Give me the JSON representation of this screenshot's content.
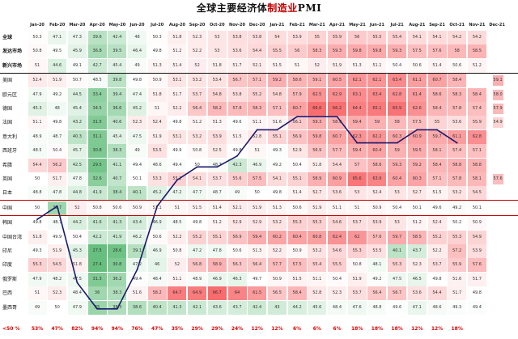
{
  "title": {
    "prefix": "全球主要经济体",
    "highlight": "制造业",
    "suffix": "PMI"
  },
  "colors": {
    "accent_red": "#c00000",
    "percent_red": "#e00000",
    "line_navy": "#1a1a6e",
    "high_red": "#f8696b",
    "low_green": "#63be7b",
    "mid": "#ffffff"
  },
  "months": [
    "Jan-20",
    "Feb-20",
    "Mar-20",
    "Apr-20",
    "May-20",
    "Jun-20",
    "Jul-20",
    "Aug-20",
    "Sep-20",
    "Oct-20",
    "Nov-20",
    "Dec-20",
    "Jan-21",
    "Feb-21",
    "Mar-21",
    "Apr-21",
    "May-21",
    "Jun-21",
    "Jul-21",
    "Aug-21",
    "Sep-21",
    "Oct-21",
    "Nov-21",
    "Dec-21"
  ],
  "rows": [
    {
      "label": "全球",
      "bold": true,
      "values": [
        50.3,
        47.1,
        47.3,
        39.6,
        42.4,
        48.0,
        50.3,
        51.8,
        52.3,
        53.0,
        53.8,
        53.8,
        54.0,
        53.9,
        55.0,
        55.9,
        56.0,
        55.5,
        55.4,
        54.1,
        54.1,
        54.2,
        54.2,
        null
      ]
    },
    {
      "label": "发达市场",
      "bold": true,
      "values": [
        50.8,
        49.5,
        45.9,
        36.8,
        39.5,
        46.4,
        49.8,
        51.2,
        52.2,
        53.0,
        53.6,
        54.4,
        55.5,
        56.0,
        58.3,
        59.3,
        59.8,
        59.8,
        59.3,
        57.5,
        57.6,
        58.0,
        58.5,
        null
      ]
    },
    {
      "label": "新兴市场",
      "bold": true,
      "values": [
        51.0,
        44.6,
        49.1,
        42.7,
        45.4,
        49.0,
        51.3,
        51.4,
        52.0,
        51.8,
        51.7,
        52.1,
        51.5,
        51.0,
        52.0,
        51.9,
        51.3,
        51.1,
        50.4,
        50.6,
        51.4,
        50.6,
        51.2,
        null
      ]
    },
    {
      "label": "美国",
      "bold": false,
      "values": [
        52.4,
        51.9,
        50.7,
        48.5,
        39.8,
        49.8,
        50.9,
        53.1,
        53.2,
        53.4,
        56.7,
        57.1,
        59.2,
        58.6,
        59.1,
        60.5,
        62.1,
        62.1,
        63.4,
        61.1,
        60.7,
        58.4,
        null,
        null
      ]
    },
    {
      "label": "欧元区",
      "bold": false,
      "values": [
        47.9,
        49.2,
        44.5,
        33.4,
        39.4,
        47.4,
        51.8,
        51.7,
        53.7,
        54.8,
        53.8,
        55.2,
        54.8,
        57.9,
        62.5,
        62.9,
        63.1,
        63.4,
        62.8,
        61.4,
        58.6,
        58.3,
        58.4,
        null
      ]
    },
    {
      "label": "德国",
      "bold": false,
      "values": [
        45.3,
        48.0,
        45.4,
        34.5,
        36.6,
        45.2,
        51.0,
        52.2,
        56.4,
        58.2,
        57.8,
        58.3,
        57.1,
        60.7,
        66.6,
        66.2,
        64.4,
        65.1,
        65.9,
        62.6,
        58.4,
        57.8,
        57.4,
        null
      ]
    },
    {
      "label": "法国",
      "bold": false,
      "values": [
        51.1,
        49.8,
        43.2,
        31.5,
        40.6,
        52.3,
        52.4,
        49.8,
        51.2,
        51.3,
        49.6,
        51.1,
        51.6,
        56.1,
        59.3,
        58.9,
        59.4,
        59.0,
        58.0,
        57.5,
        55.0,
        53.6,
        55.9,
        null
      ]
    },
    {
      "label": "意大利",
      "bold": false,
      "values": [
        48.9,
        48.7,
        40.3,
        31.1,
        45.4,
        47.5,
        51.9,
        53.1,
        53.2,
        53.9,
        51.5,
        52.8,
        55.1,
        56.9,
        59.8,
        60.7,
        62.3,
        62.2,
        60.3,
        60.9,
        59.7,
        61.1,
        62.8,
        null
      ]
    },
    {
      "label": "西班牙",
      "bold": false,
      "values": [
        48.5,
        50.4,
        45.7,
        30.8,
        38.3,
        49.0,
        53.5,
        49.9,
        50.8,
        52.5,
        49.8,
        51.0,
        49.3,
        52.9,
        56.9,
        57.7,
        59.4,
        60.4,
        59.0,
        59.5,
        58.1,
        57.4,
        57.1,
        null
      ]
    },
    {
      "label": "希腊",
      "bold": false,
      "values": [
        54.4,
        56.2,
        42.5,
        29.5,
        41.1,
        49.4,
        48.6,
        49.4,
        50.0,
        48.7,
        42.3,
        46.9,
        49.2,
        50.4,
        51.8,
        54.4,
        57.0,
        58.6,
        59.3,
        59.2,
        58.4,
        58.8,
        58.8,
        null
      ]
    },
    {
      "label": "英国",
      "bold": false,
      "values": [
        50.0,
        51.7,
        47.8,
        32.6,
        40.7,
        50.1,
        53.3,
        55.2,
        54.1,
        53.7,
        55.6,
        57.5,
        54.1,
        55.1,
        58.9,
        60.9,
        65.6,
        63.9,
        60.4,
        60.3,
        57.1,
        57.8,
        58.1,
        null
      ]
    },
    {
      "label": "日本",
      "bold": false,
      "values": [
        48.8,
        47.8,
        44.8,
        41.9,
        38.4,
        40.1,
        45.2,
        47.2,
        47.7,
        48.7,
        49.0,
        50.0,
        49.8,
        51.4,
        52.7,
        53.6,
        53.0,
        52.4,
        53.0,
        52.7,
        51.5,
        53.2,
        54.5,
        null
      ]
    },
    {
      "label": "中国",
      "bold": false,
      "values": [
        50.0,
        35.7,
        52.0,
        50.8,
        50.6,
        50.9,
        51.1,
        51.0,
        51.5,
        51.4,
        52.1,
        51.9,
        51.3,
        50.6,
        51.9,
        51.1,
        51.0,
        50.9,
        50.4,
        50.1,
        49.6,
        49.2,
        50.1,
        null
      ]
    },
    {
      "label": "韩国",
      "bold": false,
      "values": [
        49.8,
        48.7,
        44.2,
        41.6,
        41.3,
        43.4,
        46.9,
        48.5,
        49.8,
        51.2,
        52.9,
        52.9,
        53.2,
        55.3,
        55.3,
        54.6,
        53.7,
        53.9,
        53.0,
        51.2,
        52.4,
        50.2,
        50.9,
        null
      ]
    },
    {
      "label": "中国台湾",
      "bold": false,
      "values": [
        51.8,
        49.9,
        50.4,
        42.2,
        41.9,
        46.2,
        50.6,
        52.2,
        55.2,
        55.1,
        56.9,
        59.4,
        60.2,
        60.4,
        60.8,
        62.4,
        62.0,
        57.6,
        59.7,
        58.5,
        55.2,
        55.3,
        54.9,
        null
      ]
    },
    {
      "label": "印尼",
      "bold": false,
      "values": [
        49.3,
        51.9,
        45.3,
        27.5,
        28.6,
        39.1,
        46.9,
        50.8,
        47.2,
        47.8,
        50.6,
        51.3,
        52.2,
        50.9,
        53.2,
        54.6,
        55.3,
        53.5,
        40.1,
        43.7,
        52.2,
        57.2,
        53.9,
        null
      ]
    },
    {
      "label": "印度",
      "bold": false,
      "values": [
        55.3,
        54.5,
        51.8,
        27.4,
        30.8,
        47.2,
        46.0,
        52.0,
        56.8,
        58.9,
        56.3,
        56.4,
        57.7,
        57.5,
        55.4,
        55.5,
        50.8,
        48.1,
        55.3,
        52.3,
        53.7,
        55.9,
        57.6,
        null
      ]
    },
    {
      "label": "俄罗斯",
      "bold": false,
      "values": [
        47.9,
        48.2,
        47.5,
        31.3,
        36.2,
        49.4,
        48.4,
        51.1,
        48.9,
        46.9,
        46.3,
        49.7,
        50.9,
        51.5,
        51.1,
        50.4,
        51.9,
        49.2,
        47.5,
        46.5,
        49.8,
        51.6,
        51.7,
        null
      ]
    },
    {
      "label": "巴西",
      "bold": false,
      "values": [
        51.0,
        52.3,
        48.4,
        36.0,
        38.3,
        51.6,
        58.2,
        64.7,
        64.9,
        66.7,
        64.0,
        61.5,
        56.5,
        58.4,
        52.8,
        52.3,
        53.7,
        56.4,
        56.7,
        53.6,
        54.4,
        51.7,
        49.8,
        null
      ]
    },
    {
      "label": "墨西哥",
      "bold": false,
      "values": [
        49.0,
        50.0,
        47.9,
        35.0,
        38.3,
        38.6,
        40.4,
        41.3,
        42.1,
        43.6,
        43.7,
        42.4,
        43.0,
        44.2,
        45.6,
        48.4,
        47.6,
        48.8,
        49.6,
        47.1,
        48.6,
        49.3,
        49.4,
        null
      ]
    }
  ],
  "side_values": [
    {
      "row": 3,
      "value": "59.1"
    },
    {
      "row": 4,
      "value": "58.0"
    },
    {
      "row": 5,
      "value": "57.9"
    },
    {
      "row": 6,
      "value": "54.9"
    },
    {
      "row": 10,
      "value": "57.6"
    }
  ],
  "percent_label": "<50 %",
  "percent_row": [
    "53%",
    "47%",
    "82%",
    "94%",
    "94%",
    "76%",
    "47%",
    "35%",
    "29%",
    "29%",
    "24%",
    "12%",
    "12%",
    "6%",
    "6%",
    "6%",
    "18%",
    "18%",
    "18%",
    "12%",
    "12%",
    "18%",
    null,
    null
  ],
  "chart_data": {
    "type": "heatmap",
    "title": "全球主要经济体制造业PMI",
    "xlabel": "",
    "ylabel": "",
    "categories": [
      "Jan-20",
      "Feb-20",
      "Mar-20",
      "Apr-20",
      "May-20",
      "Jun-20",
      "Jul-20",
      "Aug-20",
      "Sep-20",
      "Oct-20",
      "Nov-20",
      "Dec-20",
      "Jan-21",
      "Feb-21",
      "Mar-21",
      "Apr-21",
      "May-21",
      "Jun-21",
      "Jul-21",
      "Aug-21",
      "Sep-21",
      "Oct-21",
      "Nov-21",
      "Dec-21"
    ],
    "color_scale": {
      "low": "#63be7b",
      "mid": "#ffffff",
      "high": "#f8696b",
      "min": 27,
      "center": 50,
      "max": 67
    },
    "overlay_line": {
      "type": "line",
      "values": [
        53,
        47,
        82,
        94,
        94,
        76,
        47,
        35,
        29,
        29,
        24,
        12,
        12,
        6,
        6,
        6,
        18,
        18,
        18,
        12,
        12,
        18
      ],
      "ylim": [
        0,
        100
      ],
      "inverted": true,
      "unit": "%"
    }
  }
}
